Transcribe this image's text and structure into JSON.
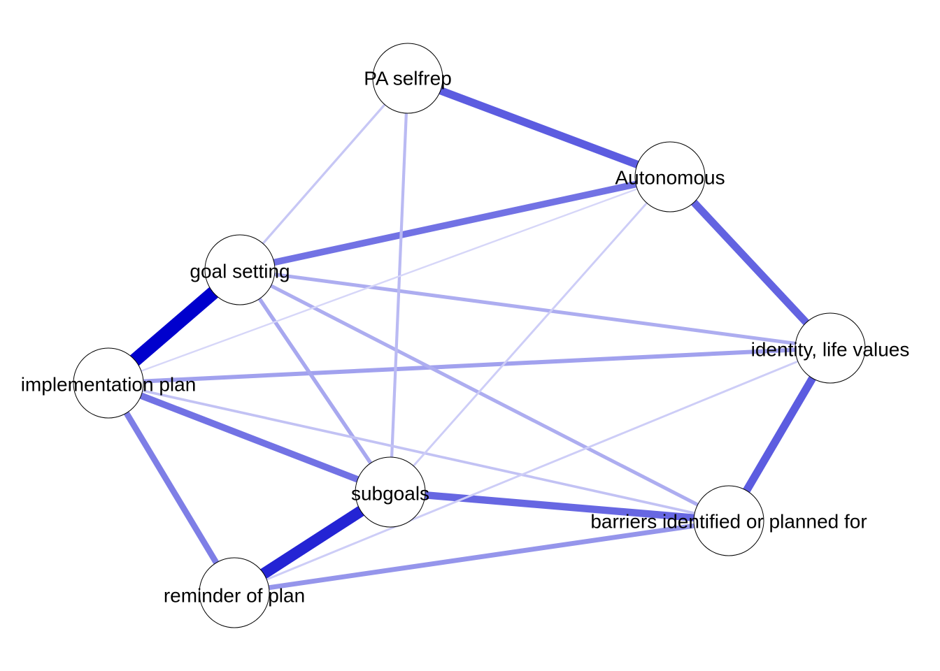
{
  "network": {
    "nodes": [
      {
        "id": "pa",
        "label": "PA selfrep"
      },
      {
        "id": "auto",
        "label": "Autonomous"
      },
      {
        "id": "goal",
        "label": "goal setting"
      },
      {
        "id": "impl",
        "label": "implementation plan"
      },
      {
        "id": "ident",
        "label": "identity, life values"
      },
      {
        "id": "sub",
        "label": "subgoals"
      },
      {
        "id": "barr",
        "label": "barriers identified or planned for"
      },
      {
        "id": "remind",
        "label": "reminder of plan"
      }
    ],
    "edges": [
      {
        "from": "goal",
        "to": "impl",
        "weight": 1.0
      },
      {
        "from": "sub",
        "to": "remind",
        "weight": 0.82
      },
      {
        "from": "pa",
        "to": "auto",
        "weight": 0.55
      },
      {
        "from": "auto",
        "to": "ident",
        "weight": 0.52
      },
      {
        "from": "ident",
        "to": "barr",
        "weight": 0.55
      },
      {
        "from": "sub",
        "to": "barr",
        "weight": 0.5
      },
      {
        "from": "goal",
        "to": "auto",
        "weight": 0.45
      },
      {
        "from": "impl",
        "to": "sub",
        "weight": 0.45
      },
      {
        "from": "impl",
        "to": "remind",
        "weight": 0.4
      },
      {
        "from": "remind",
        "to": "barr",
        "weight": 0.3
      },
      {
        "from": "impl",
        "to": "ident",
        "weight": 0.25
      },
      {
        "from": "goal",
        "to": "sub",
        "weight": 0.22
      },
      {
        "from": "goal",
        "to": "ident",
        "weight": 0.2
      },
      {
        "from": "goal",
        "to": "barr",
        "weight": 0.2
      },
      {
        "from": "pa",
        "to": "sub",
        "weight": 0.15
      },
      {
        "from": "pa",
        "to": "goal",
        "weight": 0.1
      },
      {
        "from": "impl",
        "to": "barr",
        "weight": 0.12
      },
      {
        "from": "auto",
        "to": "sub",
        "weight": 0.08
      },
      {
        "from": "ident",
        "to": "remind",
        "weight": 0.08
      },
      {
        "from": "auto",
        "to": "impl",
        "weight": 0.05
      }
    ]
  }
}
